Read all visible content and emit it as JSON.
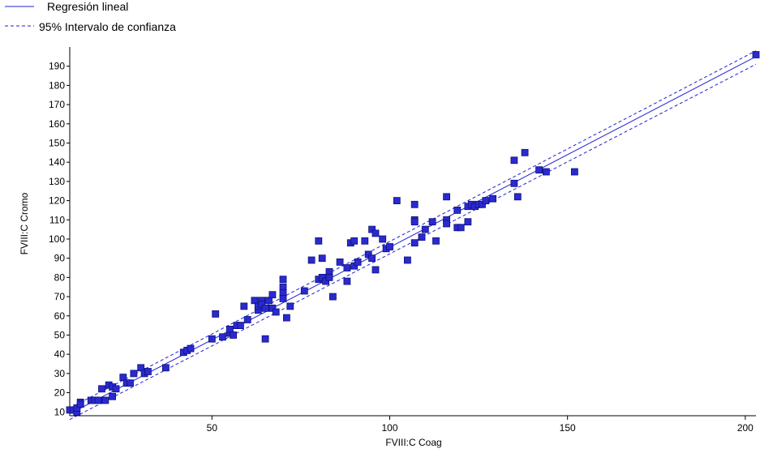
{
  "colors": {
    "line": "#1f1fd6",
    "marker_fill": "#2a2ad0",
    "marker_edge": "#10107a",
    "axis": "#000000"
  },
  "chart_data": {
    "type": "scatter",
    "title": "",
    "xlabel": "FVIII:C Coag",
    "ylabel": "FVIII:C Cromo",
    "xlim": [
      10,
      203
    ],
    "ylim": [
      8,
      200
    ],
    "xticks": [
      50,
      100,
      150,
      200
    ],
    "yticks": [
      10,
      20,
      30,
      40,
      50,
      60,
      70,
      80,
      90,
      100,
      110,
      120,
      130,
      140,
      150,
      160,
      170,
      180,
      190
    ],
    "grid": false,
    "legend_position": "top-left",
    "legend": [
      {
        "label": "Regresión lineal",
        "style": "solid"
      },
      {
        "label": "95% Intervalo de confianza",
        "style": "dashed"
      }
    ],
    "regression": {
      "x": [
        10,
        203
      ],
      "y": [
        9,
        195
      ]
    },
    "ci_upper": {
      "x": [
        10,
        203
      ],
      "y": [
        12,
        198
      ]
    },
    "ci_lower": {
      "x": [
        10,
        203
      ],
      "y": [
        6,
        191
      ]
    },
    "series": [
      {
        "points": [
          [
            10,
            11
          ],
          [
            11,
            11
          ],
          [
            12,
            10
          ],
          [
            12,
            12
          ],
          [
            13,
            15
          ],
          [
            13,
            14
          ],
          [
            16,
            16
          ],
          [
            17,
            16
          ],
          [
            18,
            16
          ],
          [
            19,
            22
          ],
          [
            20,
            16
          ],
          [
            21,
            24
          ],
          [
            22,
            23
          ],
          [
            22,
            18
          ],
          [
            23,
            22
          ],
          [
            25,
            28
          ],
          [
            26,
            25
          ],
          [
            27,
            25
          ],
          [
            28,
            30
          ],
          [
            30,
            33
          ],
          [
            31,
            30
          ],
          [
            32,
            31
          ],
          [
            37,
            33
          ],
          [
            42,
            41
          ],
          [
            43,
            42
          ],
          [
            44,
            43
          ],
          [
            50,
            48
          ],
          [
            51,
            61
          ],
          [
            53,
            49
          ],
          [
            55,
            51
          ],
          [
            55,
            53
          ],
          [
            56,
            50
          ],
          [
            57,
            55
          ],
          [
            58,
            55
          ],
          [
            59,
            65
          ],
          [
            60,
            58
          ],
          [
            62,
            68
          ],
          [
            63,
            63
          ],
          [
            63,
            65
          ],
          [
            64,
            68
          ],
          [
            64,
            66
          ],
          [
            65,
            48
          ],
          [
            65,
            64
          ],
          [
            66,
            68
          ],
          [
            67,
            64
          ],
          [
            67,
            71
          ],
          [
            68,
            62
          ],
          [
            70,
            79
          ],
          [
            70,
            75
          ],
          [
            70,
            72
          ],
          [
            70,
            69
          ],
          [
            71,
            59
          ],
          [
            72,
            65
          ],
          [
            76,
            73
          ],
          [
            78,
            89
          ],
          [
            80,
            99
          ],
          [
            80,
            79
          ],
          [
            81,
            90
          ],
          [
            81,
            80
          ],
          [
            82,
            78
          ],
          [
            83,
            83
          ],
          [
            83,
            80
          ],
          [
            84,
            70
          ],
          [
            86,
            88
          ],
          [
            88,
            78
          ],
          [
            88,
            85
          ],
          [
            89,
            98
          ],
          [
            90,
            99
          ],
          [
            90,
            86
          ],
          [
            91,
            88
          ],
          [
            93,
            99
          ],
          [
            94,
            92
          ],
          [
            95,
            105
          ],
          [
            95,
            90
          ],
          [
            96,
            103
          ],
          [
            96,
            84
          ],
          [
            98,
            100
          ],
          [
            99,
            95
          ],
          [
            100,
            96
          ],
          [
            102,
            120
          ],
          [
            105,
            89
          ],
          [
            107,
            118
          ],
          [
            107,
            110
          ],
          [
            107,
            109
          ],
          [
            107,
            98
          ],
          [
            109,
            101
          ],
          [
            110,
            105
          ],
          [
            112,
            109
          ],
          [
            113,
            99
          ],
          [
            116,
            122
          ],
          [
            116,
            110
          ],
          [
            116,
            108
          ],
          [
            119,
            115
          ],
          [
            119,
            106
          ],
          [
            120,
            106
          ],
          [
            122,
            117
          ],
          [
            122,
            109
          ],
          [
            123,
            118
          ],
          [
            124,
            117
          ],
          [
            125,
            118
          ],
          [
            126,
            118
          ],
          [
            127,
            120
          ],
          [
            129,
            121
          ],
          [
            135,
            141
          ],
          [
            135,
            129
          ],
          [
            136,
            122
          ],
          [
            138,
            145
          ],
          [
            142,
            136
          ],
          [
            144,
            135
          ],
          [
            152,
            135
          ],
          [
            203,
            196
          ]
        ]
      }
    ]
  }
}
